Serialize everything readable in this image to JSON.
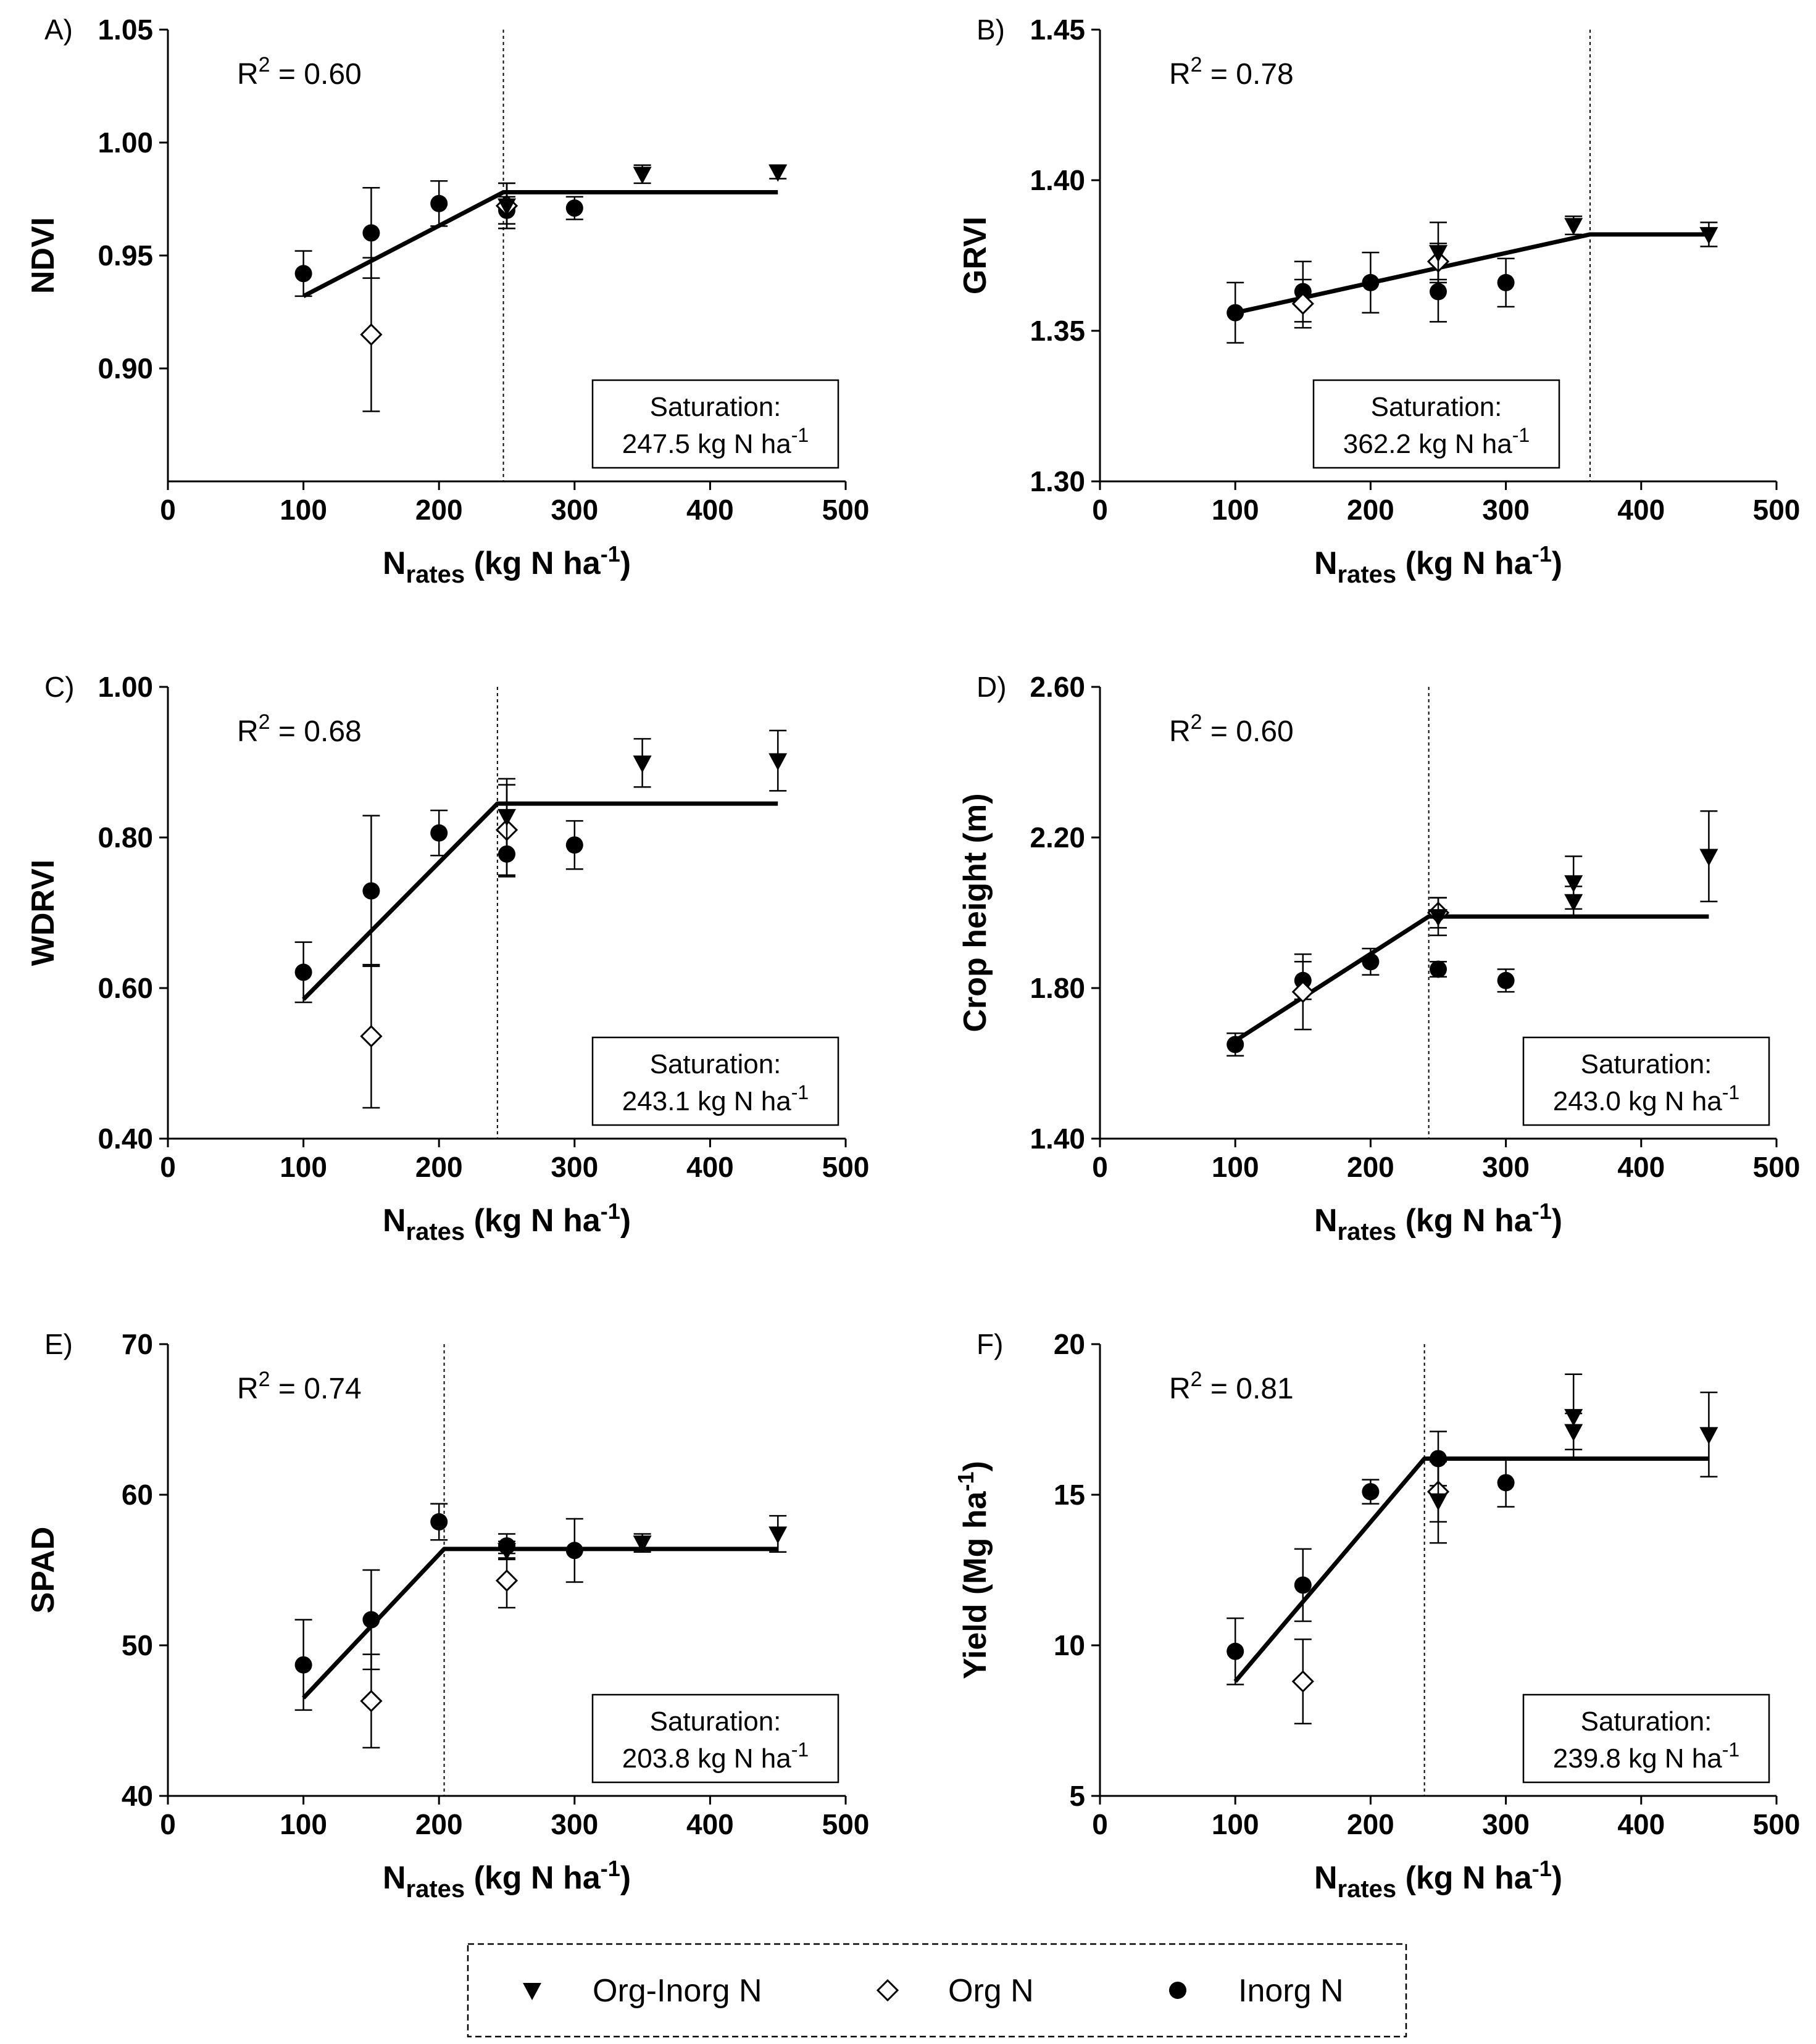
{
  "figure": {
    "legend": [
      {
        "key": "org_inorg",
        "label": "Org-Inorg N",
        "marker": "triangle-down-filled"
      },
      {
        "key": "org",
        "label": "Org N",
        "marker": "diamond-open"
      },
      {
        "key": "inorg",
        "label": "Inorg N",
        "marker": "circle-filled"
      }
    ],
    "colors": {
      "ink": "#000000",
      "background": "#ffffff"
    }
  },
  "chart_data": [
    {
      "panel": "A)",
      "type": "scatter",
      "ylabel": "NDVI",
      "xlabel": {
        "main": "N",
        "sub": "rates",
        "units": " (kg N ha",
        "sup": "-1",
        "close": ")"
      },
      "xlim": [
        0,
        500
      ],
      "xticks": [
        "0",
        "100",
        "200",
        "300",
        "400",
        "500"
      ],
      "ylim": [
        0.85,
        1.05
      ],
      "yticks": [
        "0.90",
        "0.95",
        "1.00",
        "1.05"
      ],
      "r2": {
        "text": "R",
        "sup": "2",
        "value": " = 0.60"
      },
      "saturation": {
        "title": "Saturation:",
        "value": "247.5 kg N ha",
        "sup": "-1",
        "x": 247.5
      },
      "fit": [
        [
          100,
          0.932
        ],
        [
          247.5,
          0.978
        ],
        [
          450,
          0.978
        ]
      ],
      "series": [
        {
          "key": "inorg",
          "points": [
            {
              "x": 100,
              "y": 0.942,
              "err": 0.01
            },
            {
              "x": 150,
              "y": 0.96,
              "err": 0.02
            },
            {
              "x": 200,
              "y": 0.973,
              "err": 0.01
            },
            {
              "x": 250,
              "y": 0.97,
              "err": 0.006
            },
            {
              "x": 300,
              "y": 0.971,
              "err": 0.005
            }
          ]
        },
        {
          "key": "org",
          "points": [
            {
              "x": 150,
              "y": 0.915,
              "err": 0.034
            },
            {
              "x": 250,
              "y": 0.972,
              "err": 0.01
            }
          ]
        },
        {
          "key": "org_inorg",
          "points": [
            {
              "x": 250,
              "y": 0.972,
              "err": 0.01
            },
            {
              "x": 350,
              "y": 0.986,
              "err": 0.004
            },
            {
              "x": 450,
              "y": 0.987,
              "err": 0.003
            }
          ]
        }
      ]
    },
    {
      "panel": "B)",
      "type": "scatter",
      "ylabel": "GRVI",
      "xlabel": {
        "main": "N",
        "sub": "rates",
        "units": " (kg N ha",
        "sup": "-1",
        "close": ")"
      },
      "xlim": [
        0,
        500
      ],
      "xticks": [
        "0",
        "100",
        "200",
        "300",
        "400",
        "500"
      ],
      "ylim": [
        1.3,
        1.45
      ],
      "yticks": [
        "1.30",
        "1.35",
        "1.40",
        "1.45"
      ],
      "r2": {
        "text": "R",
        "sup": "2",
        "value": " = 0.78"
      },
      "saturation": {
        "title": "Saturation:",
        "value": "362.2 kg N ha",
        "sup": "-1",
        "x": 362.2
      },
      "fit": [
        [
          100,
          1.356
        ],
        [
          362.2,
          1.382
        ],
        [
          450,
          1.382
        ]
      ],
      "series": [
        {
          "key": "inorg",
          "points": [
            {
              "x": 100,
              "y": 1.356,
              "err": 0.01
            },
            {
              "x": 150,
              "y": 1.363,
              "err": 0.01
            },
            {
              "x": 200,
              "y": 1.366,
              "err": 0.01
            },
            {
              "x": 250,
              "y": 1.363,
              "err": 0.01
            },
            {
              "x": 300,
              "y": 1.366,
              "err": 0.008
            }
          ]
        },
        {
          "key": "org",
          "points": [
            {
              "x": 150,
              "y": 1.359,
              "err": 0.008
            },
            {
              "x": 250,
              "y": 1.373,
              "err": 0.006
            }
          ]
        },
        {
          "key": "org_inorg",
          "points": [
            {
              "x": 250,
              "y": 1.376,
              "err": 0.01
            },
            {
              "x": 350,
              "y": 1.385,
              "err": 0.003
            },
            {
              "x": 450,
              "y": 1.382,
              "err": 0.004
            }
          ]
        }
      ]
    },
    {
      "panel": "C)",
      "type": "scatter",
      "ylabel": "WDRVI",
      "xlabel": {
        "main": "N",
        "sub": "rates",
        "units": " (kg N ha",
        "sup": "-1",
        "close": ")"
      },
      "xlim": [
        0,
        500
      ],
      "xticks": [
        "0",
        "100",
        "200",
        "300",
        "400",
        "500"
      ],
      "ylim": [
        0.4,
        1.0
      ],
      "yticks": [
        "0.40",
        "0.60",
        "0.80",
        "1.00"
      ],
      "r2": {
        "text": "R",
        "sup": "2",
        "value": " = 0.68"
      },
      "saturation": {
        "title": "Saturation:",
        "value": "243.1 kg N ha",
        "sup": "-1",
        "x": 243.1
      },
      "fit": [
        [
          100,
          0.585
        ],
        [
          243.1,
          0.845
        ],
        [
          450,
          0.845
        ]
      ],
      "series": [
        {
          "key": "inorg",
          "points": [
            {
              "x": 100,
              "y": 0.621,
              "err": 0.04
            },
            {
              "x": 150,
              "y": 0.729,
              "err": 0.1
            },
            {
              "x": 200,
              "y": 0.806,
              "err": 0.03
            },
            {
              "x": 250,
              "y": 0.778,
              "err": 0.03
            },
            {
              "x": 300,
              "y": 0.79,
              "err": 0.032
            }
          ]
        },
        {
          "key": "org",
          "points": [
            {
              "x": 150,
              "y": 0.536,
              "err": 0.095
            },
            {
              "x": 250,
              "y": 0.81,
              "err": 0.06
            }
          ]
        },
        {
          "key": "org_inorg",
          "points": [
            {
              "x": 250,
              "y": 0.828,
              "err": 0.05
            },
            {
              "x": 350,
              "y": 0.899,
              "err": 0.032
            },
            {
              "x": 450,
              "y": 0.902,
              "err": 0.04
            }
          ]
        }
      ]
    },
    {
      "panel": "D)",
      "type": "scatter",
      "ylabel": "Crop height (m)",
      "xlabel": {
        "main": "N",
        "sub": "rates",
        "units": " (kg N ha",
        "sup": "-1",
        "close": ")"
      },
      "xlim": [
        0,
        500
      ],
      "xticks": [
        "0",
        "100",
        "200",
        "300",
        "400",
        "500"
      ],
      "ylim": [
        1.4,
        2.6
      ],
      "yticks": [
        "1.40",
        "1.80",
        "2.20",
        "2.60"
      ],
      "r2": {
        "text": "R",
        "sup": "2",
        "value": " = 0.60"
      },
      "saturation": {
        "title": "Saturation:",
        "value": "243.0 kg N ha",
        "sup": "-1",
        "x": 243.0
      },
      "fit": [
        [
          100,
          1.66
        ],
        [
          243.0,
          1.99
        ],
        [
          450,
          1.99
        ]
      ],
      "series": [
        {
          "key": "inorg",
          "points": [
            {
              "x": 100,
              "y": 1.65,
              "err": 0.03
            },
            {
              "x": 150,
              "y": 1.82,
              "err": 0.05
            },
            {
              "x": 200,
              "y": 1.87,
              "err": 0.035
            },
            {
              "x": 250,
              "y": 1.85,
              "err": 0.02
            },
            {
              "x": 300,
              "y": 1.82,
              "err": 0.03
            }
          ]
        },
        {
          "key": "org",
          "points": [
            {
              "x": 150,
              "y": 1.79,
              "err": 0.1
            },
            {
              "x": 250,
              "y": 2.0,
              "err": 0.04
            }
          ]
        },
        {
          "key": "org_inorg",
          "points": [
            {
              "x": 250,
              "y": 1.99,
              "err": 0.05
            },
            {
              "x": 350,
              "y": 2.03,
              "err": 0.04
            },
            {
              "x": 350,
              "y": 2.08,
              "err": 0.07
            },
            {
              "x": 450,
              "y": 2.15,
              "err": 0.12
            }
          ]
        }
      ]
    },
    {
      "panel": "E)",
      "type": "scatter",
      "ylabel": "SPAD",
      "xlabel": {
        "main": "N",
        "sub": "rates",
        "units": " (kg N ha",
        "sup": "-1",
        "close": ")"
      },
      "xlim": [
        0,
        500
      ],
      "xticks": [
        "0",
        "100",
        "200",
        "300",
        "400",
        "500"
      ],
      "ylim": [
        40,
        70
      ],
      "yticks": [
        "40",
        "50",
        "60",
        "70"
      ],
      "r2": {
        "text": "R",
        "sup": "2",
        "value": " = 0.74"
      },
      "saturation": {
        "title": "Saturation:",
        "value": "203.8 kg N ha",
        "sup": "-1",
        "x": 203.8
      },
      "fit": [
        [
          100,
          46.5
        ],
        [
          203.8,
          56.4
        ],
        [
          450,
          56.4
        ]
      ],
      "series": [
        {
          "key": "inorg",
          "points": [
            {
              "x": 100,
              "y": 48.7,
              "err": 3.0
            },
            {
              "x": 150,
              "y": 51.7,
              "err": 3.3
            },
            {
              "x": 200,
              "y": 58.2,
              "err": 1.2
            },
            {
              "x": 250,
              "y": 56.6,
              "err": 0.8
            },
            {
              "x": 300,
              "y": 56.3,
              "err": 2.1
            }
          ]
        },
        {
          "key": "org",
          "points": [
            {
              "x": 150,
              "y": 46.3,
              "err": 3.1
            },
            {
              "x": 250,
              "y": 54.3,
              "err": 1.8
            }
          ]
        },
        {
          "key": "org_inorg",
          "points": [
            {
              "x": 250,
              "y": 56.3,
              "err": 0.6
            },
            {
              "x": 350,
              "y": 56.8,
              "err": 0.6
            },
            {
              "x": 450,
              "y": 57.4,
              "err": 1.2
            }
          ]
        }
      ]
    },
    {
      "panel": "F)",
      "type": "scatter",
      "ylabel": "Yield (Mg ha",
      "ylabel_sup": "-1",
      "ylabel_close": ")",
      "xlabel": {
        "main": "N",
        "sub": "rates",
        "units": " (kg N ha",
        "sup": "-1",
        "close": ")"
      },
      "xlim": [
        0,
        500
      ],
      "xticks": [
        "0",
        "100",
        "200",
        "300",
        "400",
        "500"
      ],
      "ylim": [
        5,
        20
      ],
      "yticks": [
        "5",
        "10",
        "15",
        "20"
      ],
      "r2": {
        "text": "R",
        "sup": "2",
        "value": " = 0.81"
      },
      "saturation": {
        "title": "Saturation:",
        "value": "239.8 kg N ha",
        "sup": "-1",
        "x": 239.8
      },
      "fit": [
        [
          100,
          8.8
        ],
        [
          239.8,
          16.2
        ],
        [
          450,
          16.2
        ]
      ],
      "series": [
        {
          "key": "inorg",
          "points": [
            {
              "x": 100,
              "y": 9.8,
              "err": 1.1
            },
            {
              "x": 150,
              "y": 12.0,
              "err": 1.2
            },
            {
              "x": 200,
              "y": 15.1,
              "err": 0.4
            },
            {
              "x": 250,
              "y": 16.2,
              "err": 0.9
            },
            {
              "x": 300,
              "y": 15.4,
              "err": 0.8
            }
          ]
        },
        {
          "key": "org",
          "points": [
            {
              "x": 150,
              "y": 8.8,
              "err": 1.4
            },
            {
              "x": 250,
              "y": 15.1,
              "err": 1.0
            }
          ]
        },
        {
          "key": "org_inorg",
          "points": [
            {
              "x": 250,
              "y": 14.8,
              "err": 1.4
            },
            {
              "x": 350,
              "y": 17.1,
              "err": 0.6
            },
            {
              "x": 350,
              "y": 17.6,
              "err": 1.4
            },
            {
              "x": 450,
              "y": 17.0,
              "err": 1.4
            }
          ]
        }
      ]
    }
  ]
}
